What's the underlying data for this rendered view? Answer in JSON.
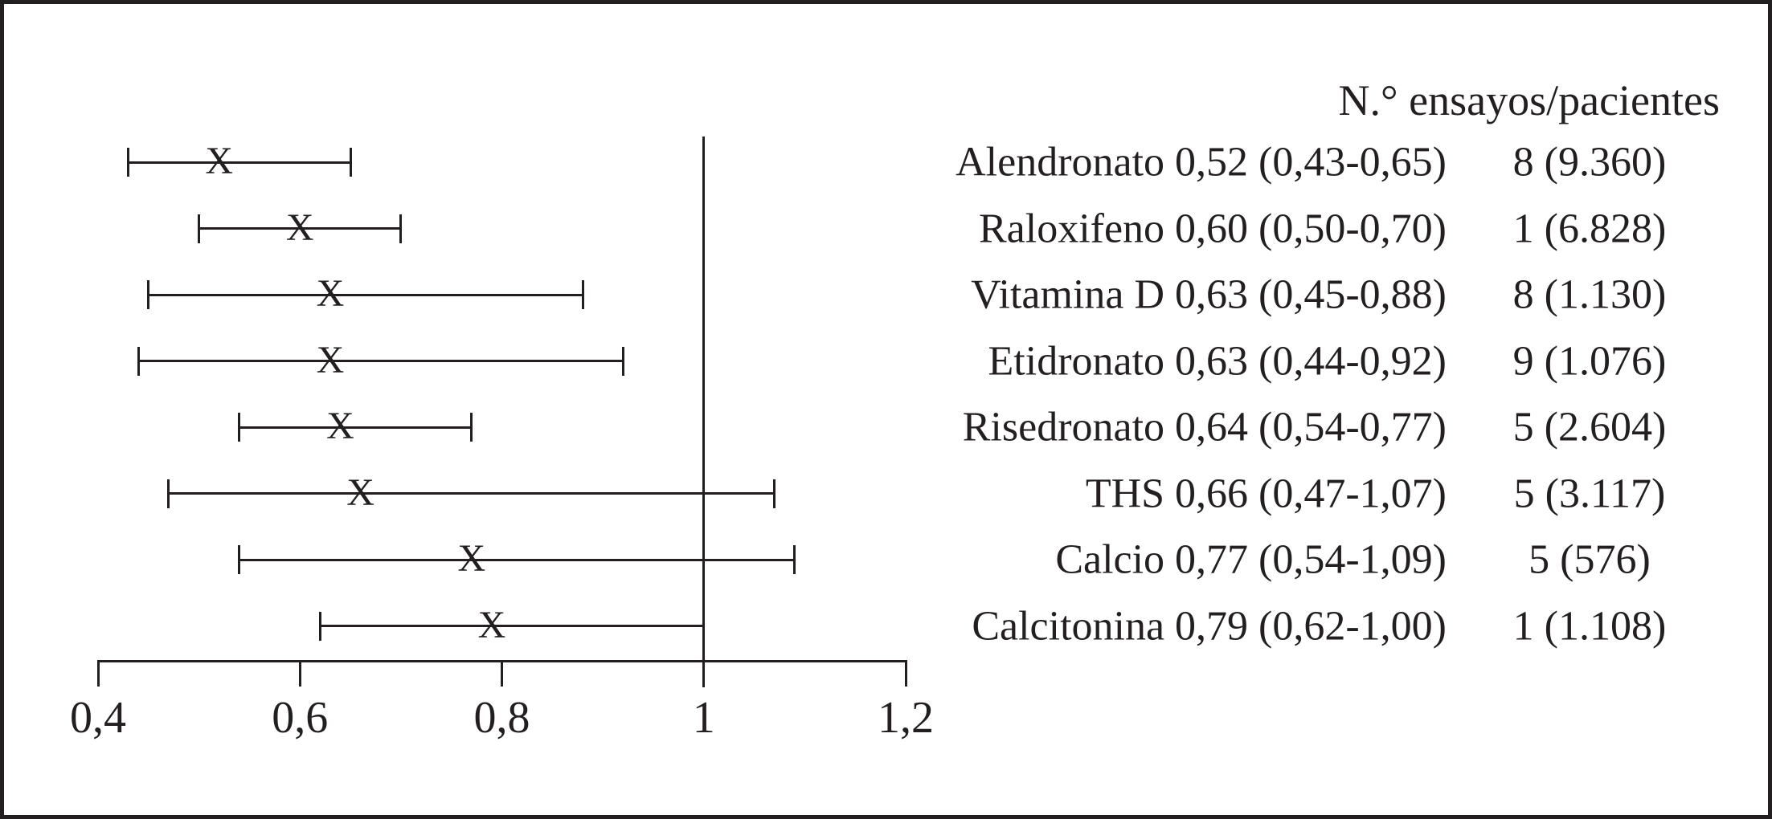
{
  "chart_data": {
    "type": "forest",
    "column_header": "N.° ensayos/pacientes",
    "marker": "X",
    "x_axis": {
      "range": [
        0.4,
        1.2
      ],
      "reference_line": 1.0,
      "ticks": [
        {
          "value": 0.4,
          "label": "0,4"
        },
        {
          "value": 0.6,
          "label": "0,6"
        },
        {
          "value": 0.8,
          "label": "0,8"
        },
        {
          "value": 1.0,
          "label": "1"
        },
        {
          "value": 1.2,
          "label": "1,2"
        }
      ]
    },
    "rows": [
      {
        "name": "Alendronato",
        "estimate": 0.52,
        "ci_low": 0.43,
        "ci_high": 0.65,
        "estimate_text": "0,52 (0,43-0,65)",
        "trials_text": "8 (9.360)"
      },
      {
        "name": "Raloxifeno",
        "estimate": 0.6,
        "ci_low": 0.5,
        "ci_high": 0.7,
        "estimate_text": "0,60 (0,50-0,70)",
        "trials_text": "1 (6.828)"
      },
      {
        "name": "Vitamina D",
        "estimate": 0.63,
        "ci_low": 0.45,
        "ci_high": 0.88,
        "estimate_text": "0,63 (0,45-0,88)",
        "trials_text": "8 (1.130)"
      },
      {
        "name": "Etidronato",
        "estimate": 0.63,
        "ci_low": 0.44,
        "ci_high": 0.92,
        "estimate_text": "0,63 (0,44-0,92)",
        "trials_text": "9 (1.076)"
      },
      {
        "name": "Risedronato",
        "estimate": 0.64,
        "ci_low": 0.54,
        "ci_high": 0.77,
        "estimate_text": "0,64 (0,54-0,77)",
        "trials_text": "5 (2.604)"
      },
      {
        "name": "THS",
        "estimate": 0.66,
        "ci_low": 0.47,
        "ci_high": 1.07,
        "estimate_text": "0,66 (0,47-1,07)",
        "trials_text": "5 (3.117)"
      },
      {
        "name": "Calcio",
        "estimate": 0.77,
        "ci_low": 0.54,
        "ci_high": 1.09,
        "estimate_text": "0,77 (0,54-1,09)",
        "trials_text": "5 (576)"
      },
      {
        "name": "Calcitonina",
        "estimate": 0.79,
        "ci_low": 0.62,
        "ci_high": 1.0,
        "estimate_text": "0,79 (0,62-1,00)",
        "trials_text": "1 (1.108)"
      }
    ]
  }
}
